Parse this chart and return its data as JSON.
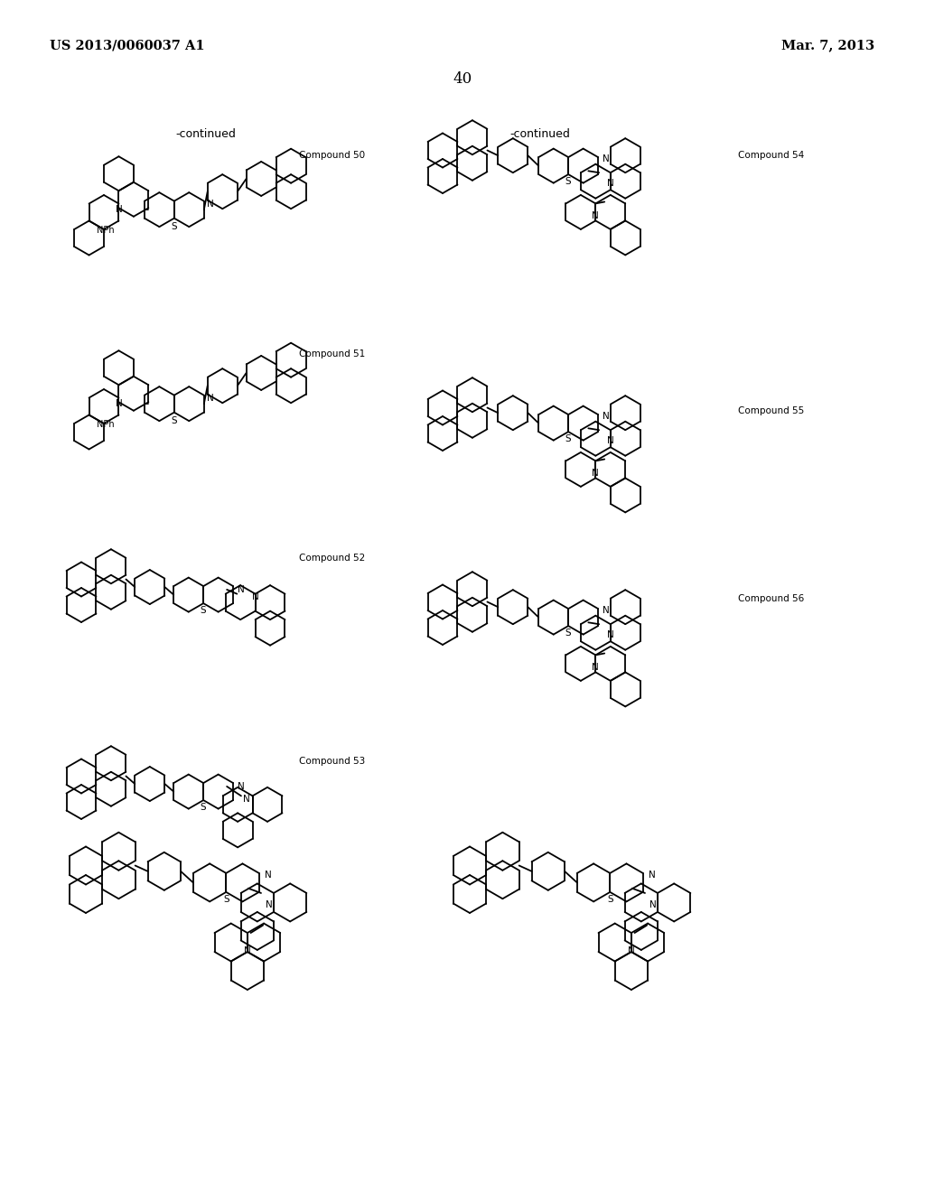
{
  "page_header_left": "US 2013/0060037 A1",
  "page_header_right": "Mar. 7, 2013",
  "page_number": "40",
  "continued_left": "-continued",
  "continued_right": "-continued",
  "label_50": "Compound 50",
  "label_51": "Compound 51",
  "label_52": "Compound 52",
  "label_53": "Compound 53",
  "label_54": "Compound 54",
  "label_55": "Compound 55",
  "label_56": "Compound 56",
  "figsize": [
    10.24,
    13.2
  ],
  "dpi": 100
}
